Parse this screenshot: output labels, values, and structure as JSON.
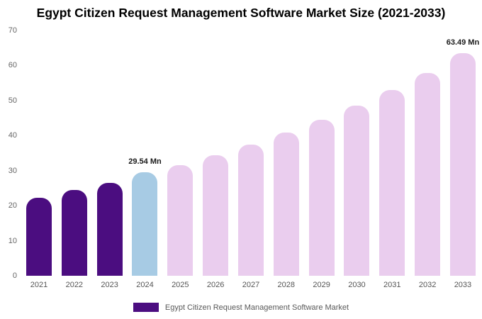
{
  "chart_data": {
    "type": "bar",
    "title": "Egypt Citizen Request Management Software Market Size (2021-2033)",
    "xlabel": "",
    "ylabel": "",
    "unit": "Mn",
    "ylim": [
      0,
      70
    ],
    "yticks": [
      0,
      10,
      20,
      30,
      40,
      50,
      60,
      70
    ],
    "grid": false,
    "legend_position": "bottom",
    "legend_label": "Egypt Citizen Request Management Software Market",
    "colors": {
      "historical": "#4b0d80",
      "current": "#a7cbe4",
      "forecast": "#eacdee"
    },
    "bars": [
      {
        "year": "2021",
        "value": 22.2,
        "segment": "historical"
      },
      {
        "year": "2022",
        "value": 24.4,
        "segment": "historical"
      },
      {
        "year": "2023",
        "value": 26.6,
        "segment": "historical"
      },
      {
        "year": "2024",
        "value": 29.54,
        "segment": "current",
        "annotation": "29.54 Mn"
      },
      {
        "year": "2025",
        "value": 31.6,
        "segment": "forecast"
      },
      {
        "year": "2026",
        "value": 34.4,
        "segment": "forecast"
      },
      {
        "year": "2027",
        "value": 37.4,
        "segment": "forecast"
      },
      {
        "year": "2028",
        "value": 40.8,
        "segment": "forecast"
      },
      {
        "year": "2029",
        "value": 44.6,
        "segment": "forecast"
      },
      {
        "year": "2030",
        "value": 48.6,
        "segment": "forecast"
      },
      {
        "year": "2031",
        "value": 53.0,
        "segment": "forecast"
      },
      {
        "year": "2032",
        "value": 57.8,
        "segment": "forecast"
      },
      {
        "year": "2033",
        "value": 63.49,
        "segment": "forecast",
        "annotation": "63.49 Mn"
      }
    ]
  }
}
